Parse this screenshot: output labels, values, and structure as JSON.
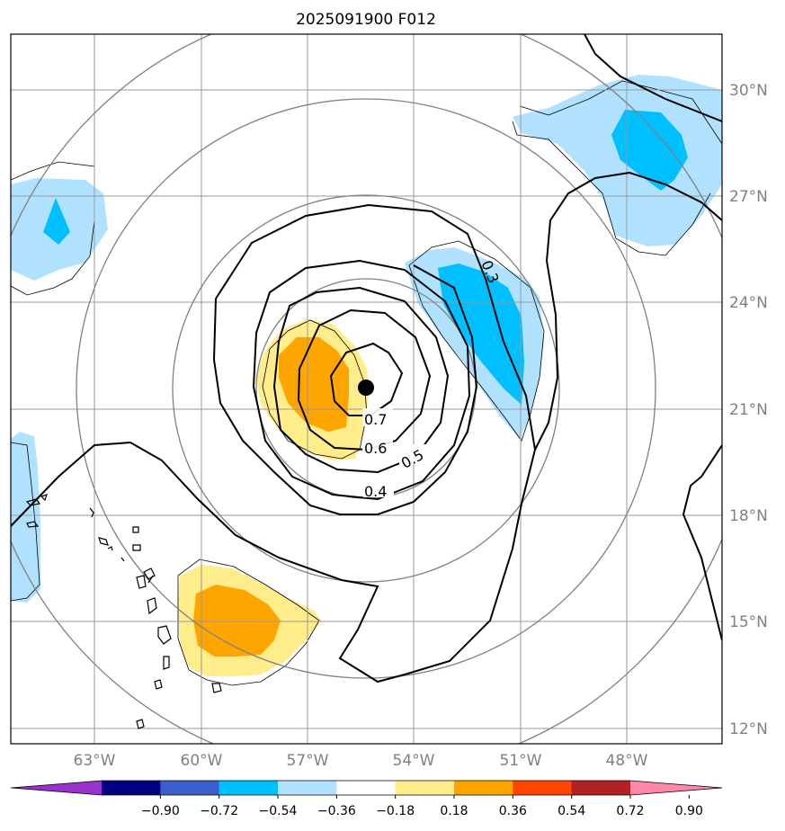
{
  "title": "2025091900 F012",
  "lon_labels": [
    "63°W",
    "60°W",
    "57°W",
    "54°W",
    "51°W",
    "48°W"
  ],
  "lat_labels": [
    "30°N",
    "27°N",
    "24°N",
    "21°N",
    "18°N",
    "15°N",
    "12°N"
  ],
  "contour_labels": [
    "0.3",
    "0.4",
    "0.5",
    "0.6",
    "0.7"
  ],
  "colorbar": {
    "tick_labels": [
      "−0.90",
      "−0.72",
      "−0.54",
      "−0.36",
      "−0.18",
      "0.18",
      "0.36",
      "0.54",
      "0.72",
      "0.90"
    ],
    "colors": [
      "#9932cc",
      "#000080",
      "#3a5fcd",
      "#00bfff",
      "#b0e2ff",
      "#ffffff",
      "#ffec8b",
      "#ffa500",
      "#ff4500",
      "#b22222",
      "#ff88aa"
    ]
  },
  "colors": {
    "strong_negative": "#00bfff",
    "weak_negative": "#b0e2ff",
    "weak_positive": "#ffec8b",
    "strong_positive": "#ffa500",
    "grid": "#999999",
    "contour": "#000000",
    "range_rings": "#808080"
  },
  "center_marker": "storm-center-dot"
}
